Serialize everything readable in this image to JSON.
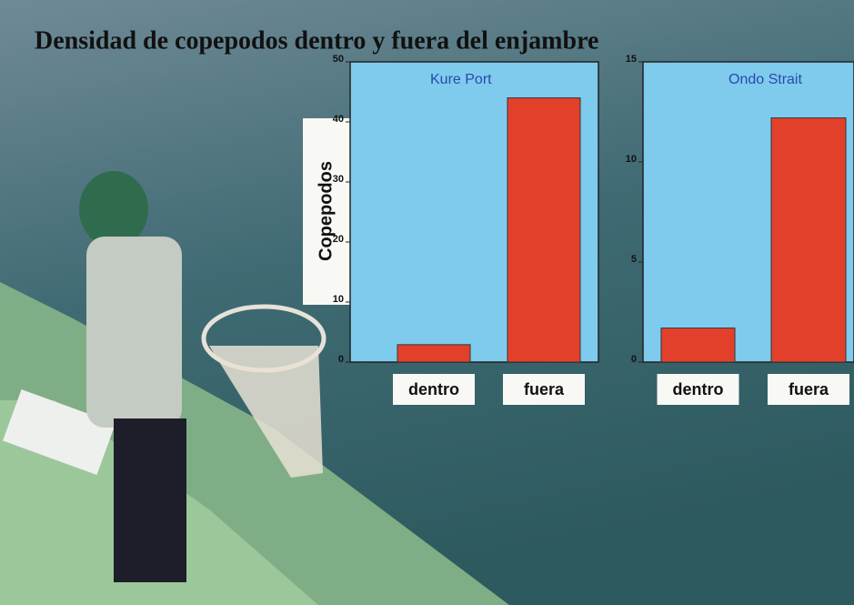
{
  "title": "Densidad de copepodos dentro y fuera del enjambre",
  "chart_data": [
    {
      "type": "bar",
      "title": "Kure Port",
      "y_label": "Copepodos",
      "categories": [
        "dentro",
        "fuera"
      ],
      "values": [
        2.9,
        44
      ],
      "color": "#e3402c",
      "ylim": [
        0,
        50
      ],
      "yticks": [
        0,
        10,
        20,
        30,
        40,
        50
      ]
    },
    {
      "type": "bar",
      "title": "Ondo Strait",
      "categories": [
        "dentro",
        "fuera"
      ],
      "values": [
        1.7,
        12.2
      ],
      "color": "#e3402c",
      "ylim": [
        0,
        15
      ],
      "yticks": [
        0,
        5,
        10,
        15
      ]
    }
  ]
}
